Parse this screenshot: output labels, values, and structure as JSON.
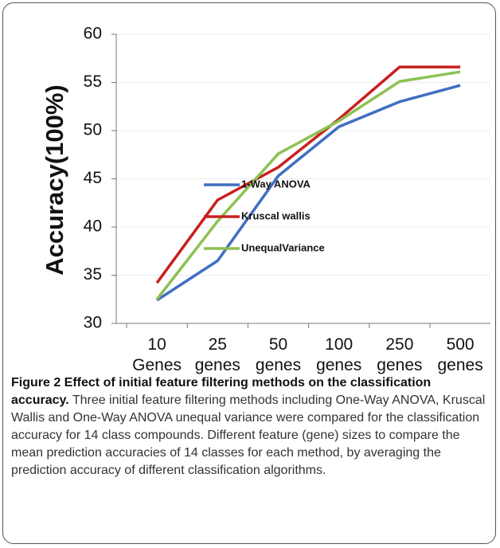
{
  "chart_data": {
    "type": "line",
    "y_label": "Accuracy(100%)",
    "categories": [
      "10 Genes",
      "25 genes",
      "50 genes",
      "100 genes",
      "250 genes",
      "500 genes"
    ],
    "series": [
      {
        "name": "1-Way ANOVA",
        "color": "#3f6fc1",
        "values": [
          32.4,
          36.5,
          45.3,
          50.4,
          53.0,
          54.7
        ]
      },
      {
        "name": "Kruscal wallis",
        "color": "#c8201f",
        "values": [
          34.2,
          42.8,
          46.2,
          51.2,
          56.6,
          56.6
        ]
      },
      {
        "name": "UnequalVariance",
        "color": "#8dc153",
        "values": [
          32.5,
          40.6,
          47.6,
          51.0,
          55.1,
          56.1
        ]
      }
    ],
    "ylim": [
      30,
      60
    ],
    "yticks": [
      30,
      35,
      40,
      45,
      50,
      55,
      60
    ],
    "grid": true
  },
  "caption": {
    "label": "Figure 2 Effect of initial feature filtering methods on the classification accuracy.",
    "text": "Three initial feature filtering methods including One-Way ANOVA, Kruscal Wallis and One-Way ANOVA unequal variance were compared for the classification accuracy for 14 class compounds. Different feature (gene) sizes to compare the mean prediction accuracies of 14 classes for each method, by averaging the prediction accuracy of different classification algorithms."
  }
}
